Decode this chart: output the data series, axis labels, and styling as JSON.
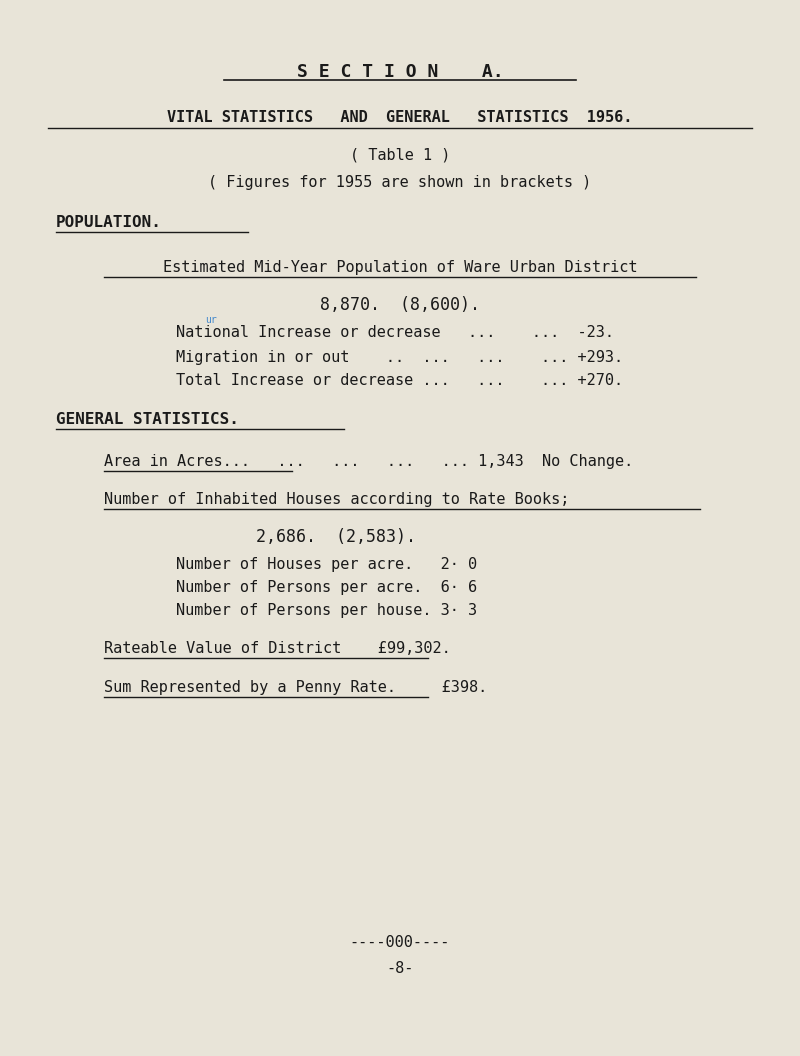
{
  "bg_color": "#e8e4d8",
  "text_color": "#1a1a1a",
  "section_title": "S E C T I O N    A.",
  "main_title": "VITAL STATISTICS   AND  GENERAL   STATISTICS  1956.",
  "table_ref": "( Table 1 )",
  "figures_note": "( Figures for 1955 are shown in brackets )",
  "population_heading": "POPULATION.",
  "pop_subheading": "Estimated Mid-Year Population of Ware Urban District",
  "pop_value": "8,870.  (8,600).",
  "national_label": "National Increase or decrease   ...    ...  -23.",
  "migration_label": "Migration in or out    ..  ...   ...    ... +293.",
  "total_label": "Total Increase or decrease ...   ...    ... +270.",
  "gen_stats_heading": "GENERAL STATISTICS.",
  "area_line": "Area in Acres...   ...   ...   ...   ... 1,343  No Change.",
  "inhabited_heading": "Number of Inhabited Houses according to Rate Books;",
  "inhabited_value": "2,686.  (2,583).",
  "houses_per_acre": "Number of Houses per acre.   2· 0",
  "persons_per_acre": "Number of Persons per acre.  6· 6",
  "persons_per_house": "Number of Persons per house. 3· 3",
  "rateable_label": "Rateable Value of District    £99,302.",
  "penny_rate_label": "Sum Represented by a Penny Rate.     £398.",
  "footer": "----000----",
  "page_num": "-8-",
  "font_family": "monospace"
}
